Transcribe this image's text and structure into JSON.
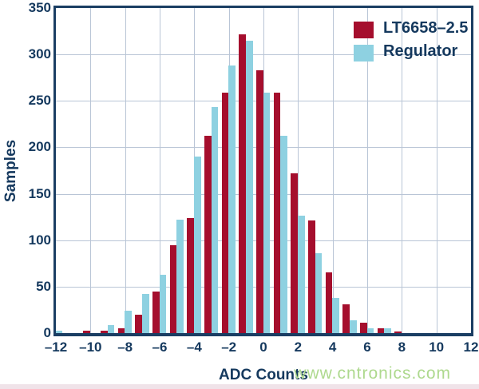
{
  "chart_data": {
    "type": "bar",
    "title": "",
    "xlabel": "ADC Counts",
    "ylabel": "Samples",
    "grid": true,
    "legend_position": "top-right",
    "xlim": [
      -12,
      12
    ],
    "ylim": [
      0,
      350
    ],
    "categories": [
      -12,
      -11,
      -10,
      -9,
      -8,
      -7,
      -6,
      -5,
      -4,
      -3,
      -2,
      -1,
      0,
      1,
      2,
      3,
      4,
      5,
      6,
      7,
      8,
      9,
      10,
      11,
      12
    ],
    "series": [
      {
        "name": "LT6658–2.5",
        "color": "#a50e2d",
        "values": [
          0,
          0,
          3,
          3,
          5,
          20,
          45,
          95,
          124,
          212,
          259,
          322,
          283,
          259,
          172,
          121,
          65,
          31,
          11,
          5,
          2,
          0,
          0,
          0,
          0
        ]
      },
      {
        "name": "Regulator",
        "color": "#8ed1e1",
        "values": [
          3,
          0,
          0,
          9,
          24,
          42,
          63,
          122,
          190,
          243,
          288,
          315,
          259,
          212,
          126,
          86,
          38,
          14,
          5,
          5,
          0,
          0,
          0,
          0,
          0
        ]
      }
    ],
    "x_ticks": [
      {
        "value": -12,
        "label": "–12"
      },
      {
        "value": -10,
        "label": "–10"
      },
      {
        "value": -8,
        "label": "–8"
      },
      {
        "value": -6,
        "label": "–6"
      },
      {
        "value": -4,
        "label": "–4"
      },
      {
        "value": -2,
        "label": "–2"
      },
      {
        "value": 0,
        "label": "0"
      },
      {
        "value": 2,
        "label": "2"
      },
      {
        "value": 4,
        "label": "4"
      },
      {
        "value": 6,
        "label": "6"
      },
      {
        "value": 8,
        "label": "8"
      },
      {
        "value": 10,
        "label": "10"
      },
      {
        "value": 12,
        "label": "12"
      }
    ],
    "y_ticks": [
      {
        "value": 0,
        "label": "0"
      },
      {
        "value": 50,
        "label": "50"
      },
      {
        "value": 100,
        "label": "100"
      },
      {
        "value": 150,
        "label": "150"
      },
      {
        "value": 200,
        "label": "200"
      },
      {
        "value": 250,
        "label": "250"
      },
      {
        "value": 300,
        "label": "300"
      },
      {
        "value": 350,
        "label": "350"
      }
    ],
    "x_gridlines": [
      -10,
      -8,
      -6,
      -4,
      -2,
      0,
      2,
      4,
      6,
      8,
      10
    ],
    "y_gridlines": [
      50,
      100,
      150,
      200,
      250,
      300
    ]
  },
  "watermark": {
    "text": "www.cntronics.com",
    "color": "#aed98e"
  },
  "colors": {
    "axis_border": "#1b3e63",
    "label_text": "#15395e",
    "gridline": "#b9c5d6",
    "background": "#ffffff",
    "bottom_strip": "#f0e3e9"
  }
}
